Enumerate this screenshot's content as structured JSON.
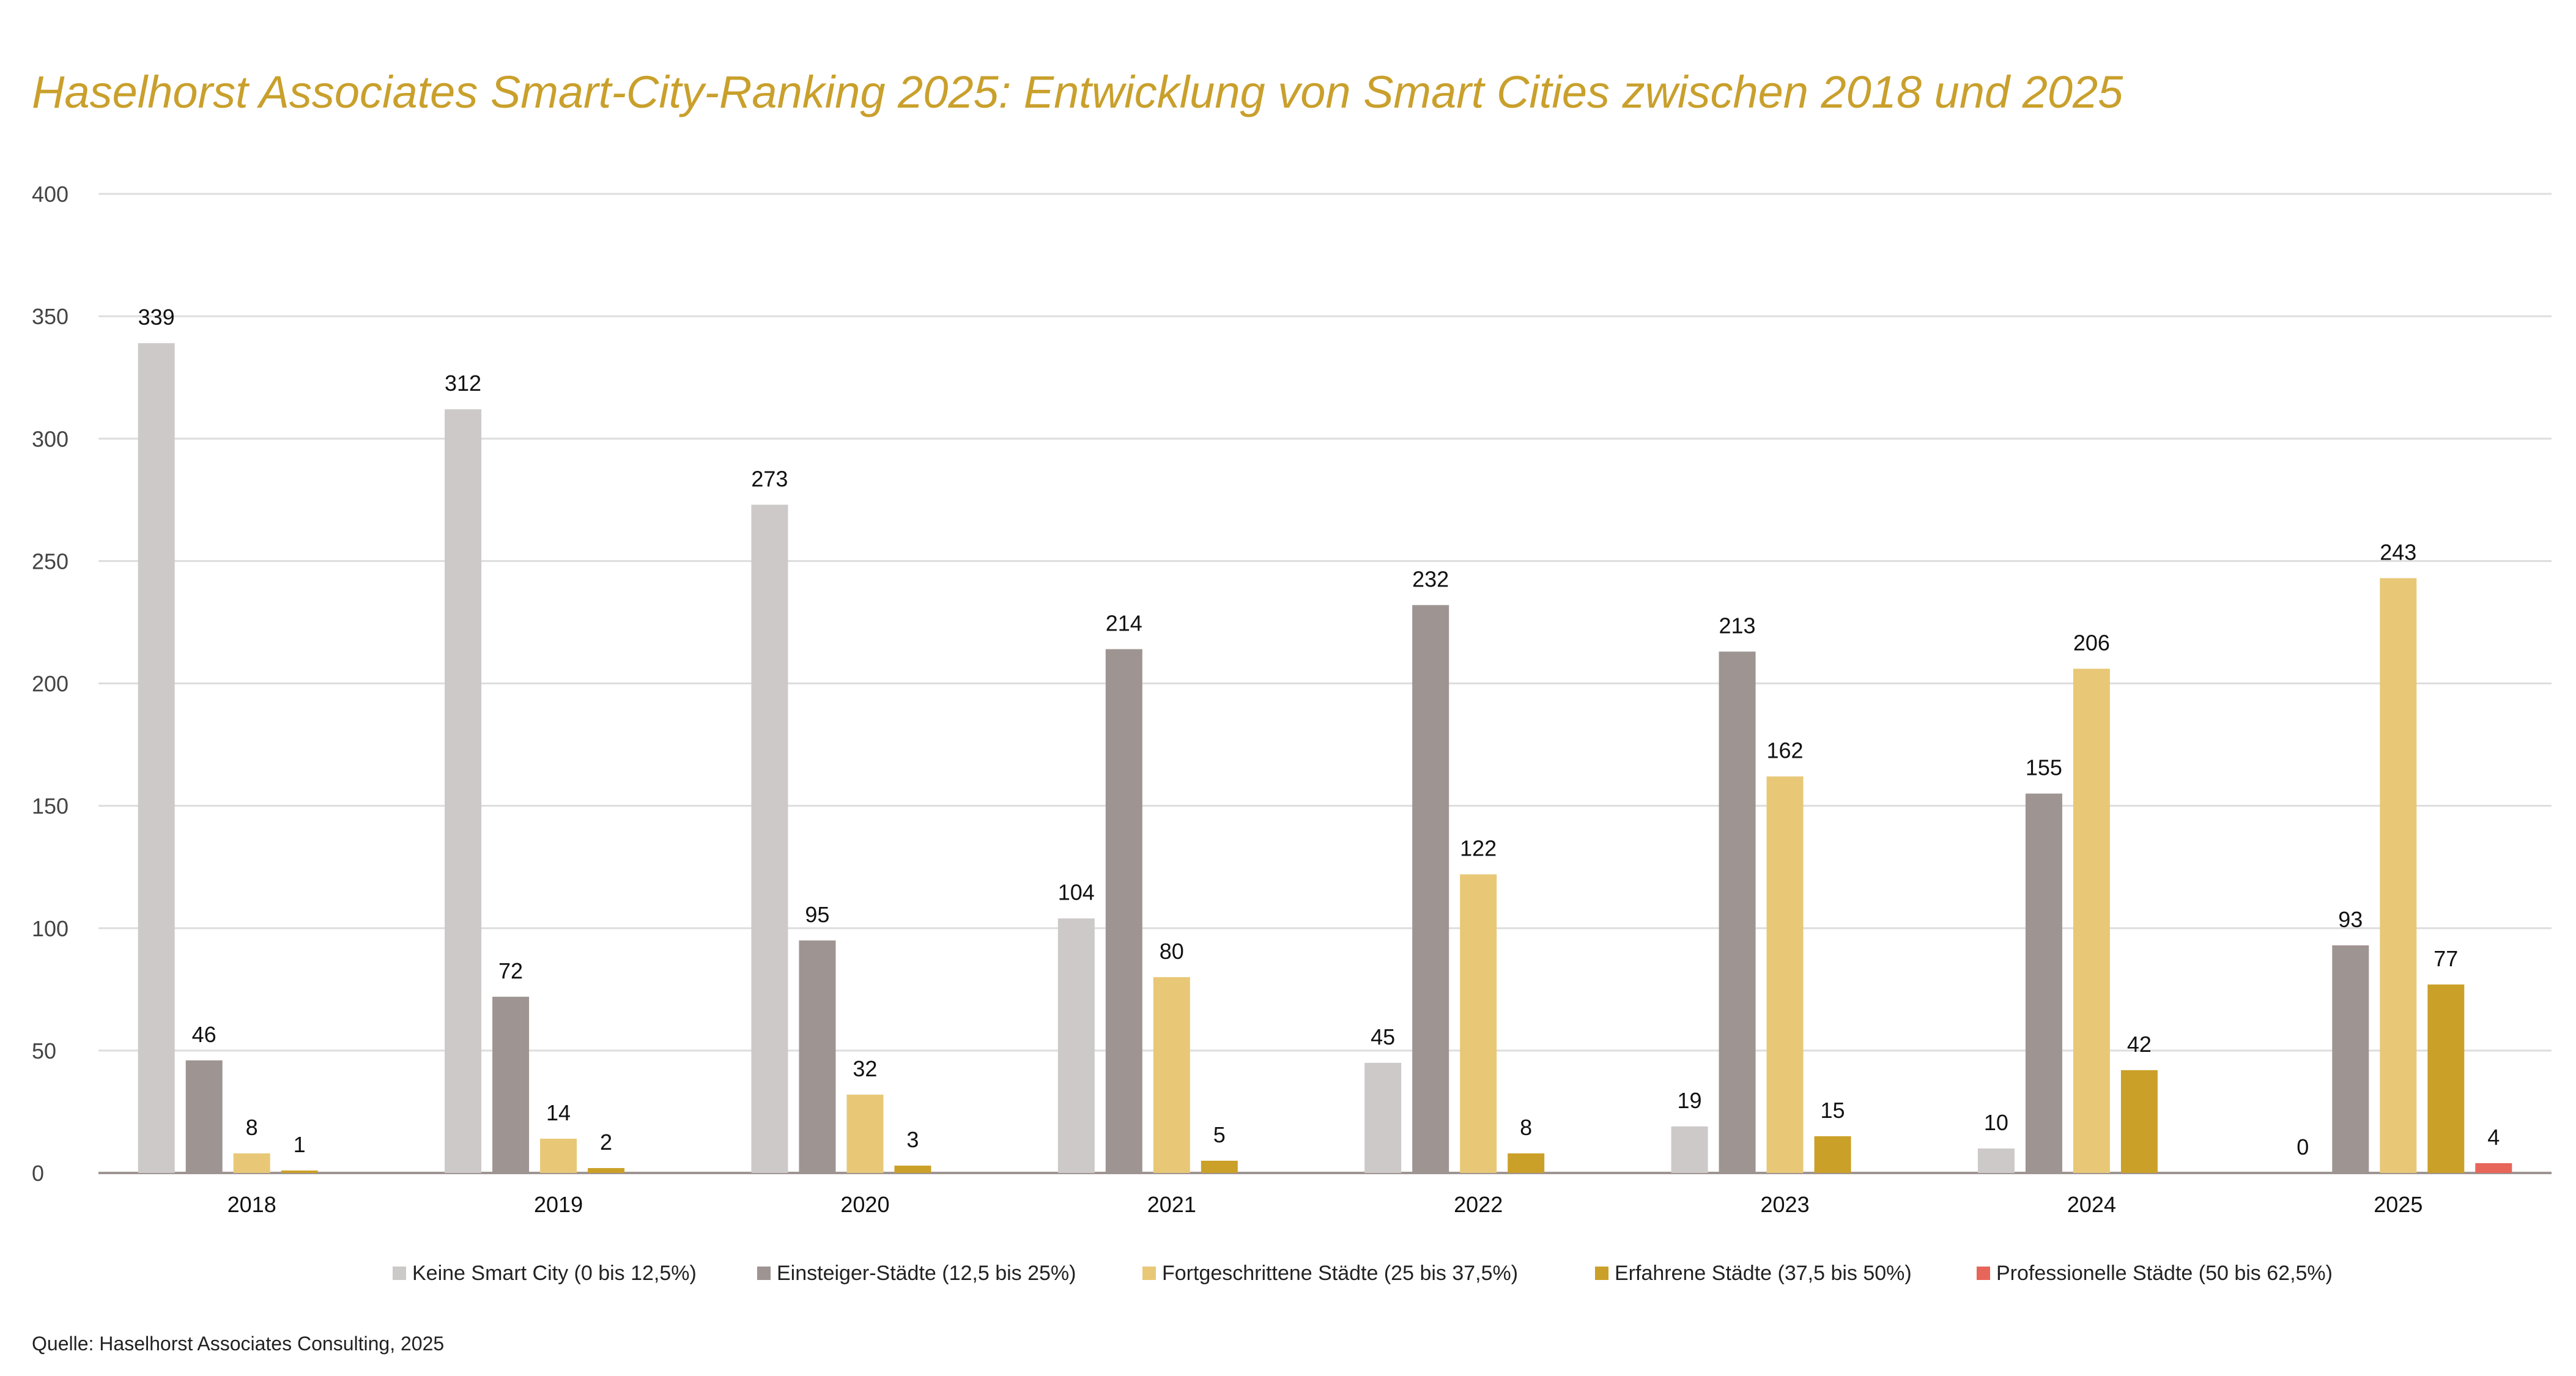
{
  "chart_data": {
    "type": "bar",
    "title": "Haselhorst Associates Smart-City-Ranking 2025: Entwicklung von Smart Cities zwischen 2018 und 2025",
    "source": "Quelle: Haselhorst Associates Consulting, 2025",
    "categories": [
      "2018",
      "2019",
      "2020",
      "2021",
      "2022",
      "2023",
      "2024",
      "2025"
    ],
    "ylim": [
      0,
      400
    ],
    "yticks": [
      0,
      50,
      100,
      150,
      200,
      250,
      300,
      350,
      400
    ],
    "grid": true,
    "legend_position": "bottom",
    "series": [
      {
        "name": "Keine Smart City (0 bis 12,5%)",
        "color": "#CDC9C8",
        "values": [
          339,
          312,
          273,
          104,
          45,
          19,
          10,
          0
        ]
      },
      {
        "name": "Einsteiger-Städte (12,5 bis 25%)",
        "color": "#9E9492",
        "values": [
          46,
          72,
          95,
          214,
          232,
          213,
          155,
          93
        ]
      },
      {
        "name": "Fortgeschrittene Städte (25 bis 37,5%)",
        "color": "#E8C877",
        "values": [
          8,
          14,
          32,
          80,
          122,
          162,
          206,
          243
        ]
      },
      {
        "name": "Erfahrene Städte (37,5 bis 50%)",
        "color": "#CBA028",
        "values": [
          1,
          2,
          3,
          5,
          8,
          15,
          42,
          77
        ]
      },
      {
        "name": "Professionelle Städte (50 bis 62,5%)",
        "color": "#E8655A",
        "values": [
          null,
          null,
          null,
          null,
          null,
          null,
          null,
          4
        ]
      }
    ]
  }
}
